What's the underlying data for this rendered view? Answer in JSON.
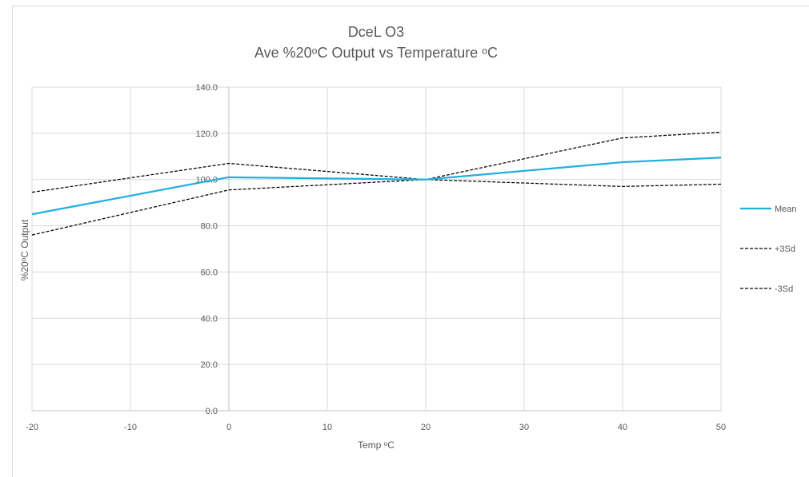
{
  "chart_data": {
    "type": "line",
    "title": "DceL O3",
    "subtitle": "Ave %20°C Output vs Temperature °C",
    "title_display": "DceL O3",
    "subtitle_display": "Ave %20ᵒC Output vs Temperature ᵒC",
    "xlabel": "Temp ᵒC",
    "ylabel": "%20ᵒC Output",
    "x": [
      -20,
      0,
      20,
      40,
      50
    ],
    "x_ticks": [
      "-20",
      "-10",
      "0",
      "10",
      "20",
      "30",
      "40",
      "50"
    ],
    "y_ticks": [
      "0.0",
      "20.0",
      "40.0",
      "60.0",
      "80.0",
      "100.0",
      "120.0",
      "140.0"
    ],
    "xlim": [
      -20,
      50
    ],
    "ylim": [
      0,
      140
    ],
    "grid": true,
    "legend_position": "right",
    "series": [
      {
        "name": "Mean",
        "values": [
          85.0,
          101.0,
          100.0,
          107.5,
          109.5
        ],
        "color": "#1fb0e0",
        "style": "solid"
      },
      {
        "name": "+3Sd",
        "values": [
          94.5,
          107.0,
          100.0,
          118.0,
          120.5
        ],
        "color": "#000000",
        "style": "dashed"
      },
      {
        "name": "-3Sd",
        "values": [
          76.0,
          95.5,
          100.0,
          97.0,
          98.0
        ],
        "color": "#000000",
        "style": "dashed"
      }
    ]
  }
}
